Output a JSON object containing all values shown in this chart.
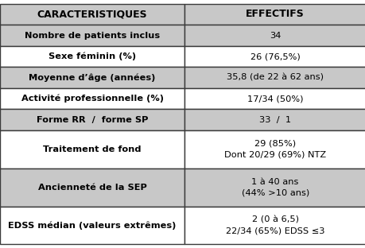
{
  "headers": [
    "CARACTERISTIQUES",
    "EFFECTIFS"
  ],
  "rows": [
    [
      "Nombre de patients inclus",
      "34"
    ],
    [
      "Sexe féminin (%)",
      "26 (76,5%)"
    ],
    [
      "Moyenne d’âge (années)",
      "35,8 (de 22 à 62 ans)"
    ],
    [
      "Activité professionnelle (%)",
      "17/34 (50%)"
    ],
    [
      "Forme RR  /  forme SP",
      "33  /  1"
    ],
    [
      "Traitement de fond",
      "29 (85%)\nDont 20/29 (69%) NTZ"
    ],
    [
      "Ancienneté de la SEP",
      "1 à 40 ans\n(44% >10 ans)"
    ],
    [
      "EDSS médian (valeurs extrêmes)",
      "2 (0 à 6,5)\n22/34 (65%) EDSS ≤3"
    ]
  ],
  "row_colors": [
    "#c8c8c8",
    "#ffffff",
    "#c8c8c8",
    "#ffffff",
    "#c8c8c8",
    "#ffffff",
    "#c8c8c8",
    "#ffffff"
  ],
  "header_bg": "#c8c8c8",
  "border_color": "#3a3a3a",
  "text_color": "#000000",
  "header_fontsize": 9.0,
  "row_fontsize": 8.2,
  "col_split": 0.505,
  "fig_width": 4.6,
  "fig_height": 3.12,
  "dpi": 100
}
